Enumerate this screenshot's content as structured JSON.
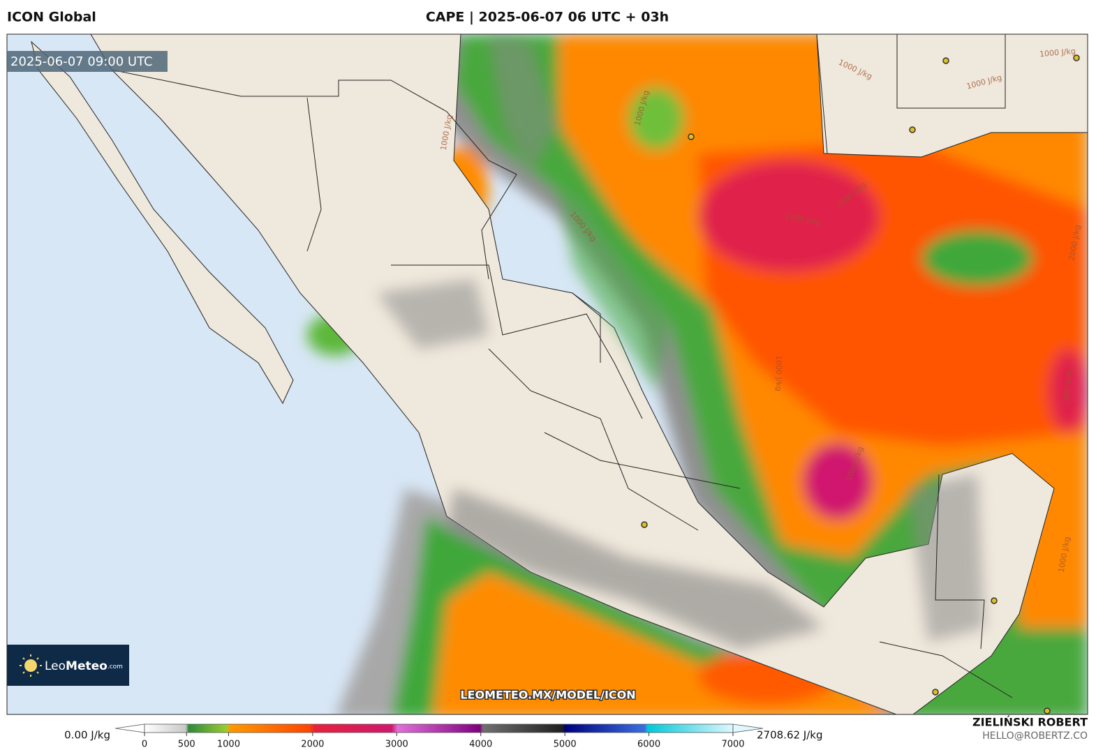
{
  "header": {
    "model": "ICON Global",
    "title": "CAPE | 2025-06-07 06 UTC + 03h"
  },
  "map": {
    "valid_time": "2025-06-07 09:00 UTC",
    "watermark": "LEOMETEO.MX/MODEL/ICON",
    "logo": {
      "leo": "Leo",
      "meteo": "Meteo",
      "suffix": ".com"
    },
    "contour_labels": [
      "1000 J/kg",
      "1000 J/kg",
      "1000 J/kg",
      "1000 J/kg",
      "1000 J/kg",
      "2000 J/kg",
      "1000 J/kg",
      "1000 J/kg",
      "2000 J/kg",
      "2000 J/kg",
      "1000 J/kg",
      "1000 J/kg",
      "1000 J/kg"
    ]
  },
  "colorbar": {
    "min_label": "0.00 J/kg",
    "max_label": "2708.62 J/kg",
    "range": [
      0,
      7000
    ],
    "ticks": [
      0,
      500,
      1000,
      2000,
      3000,
      4000,
      5000,
      6000,
      7000
    ]
  },
  "footer": {
    "author": "ZIELIŃSKI ROBERT",
    "contact": "HELLO@ROBERTZ.CO"
  }
}
